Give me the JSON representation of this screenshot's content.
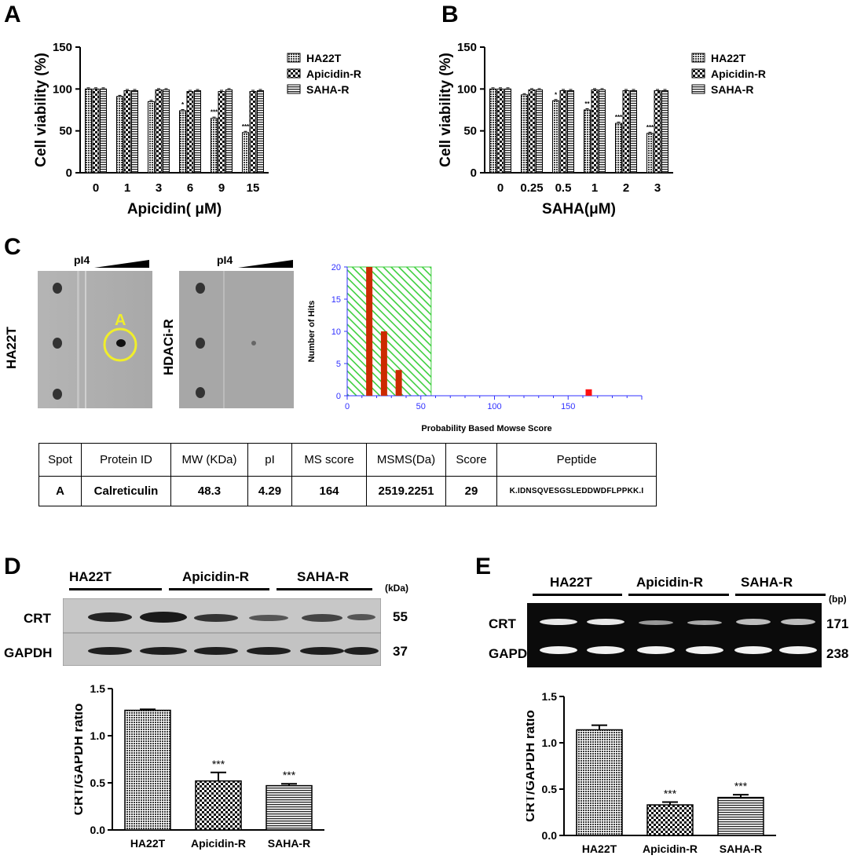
{
  "panels": {
    "A": "A",
    "B": "B",
    "C": "C",
    "D": "D",
    "E": "E"
  },
  "chart_data": [
    {
      "panel": "A",
      "type": "bar",
      "title": "",
      "xlabel": "Apicidin( μM)",
      "ylabel": "Cell viability (%)",
      "ylim": [
        0,
        150
      ],
      "yticks": [
        0,
        50,
        100,
        150
      ],
      "categories": [
        "0",
        "1",
        "3",
        "6",
        "9",
        "15"
      ],
      "series": [
        {
          "name": "HA22T",
          "pattern": "dense",
          "values": [
            100,
            91,
            85,
            74,
            65,
            48
          ]
        },
        {
          "name": "Apicidin-R",
          "pattern": "checker",
          "values": [
            100,
            98,
            99,
            97,
            97,
            97
          ]
        },
        {
          "name": "SAHA-R",
          "pattern": "hlines",
          "values": [
            100,
            98,
            99,
            98,
            99,
            98
          ]
        }
      ],
      "annotations": [
        {
          "category": "6",
          "series": "HA22T",
          "text": "*"
        },
        {
          "category": "9",
          "series": "HA22T",
          "text": "***"
        },
        {
          "category": "15",
          "series": "HA22T",
          "text": "***"
        }
      ],
      "legend": "right"
    },
    {
      "panel": "B",
      "type": "bar",
      "title": "",
      "xlabel": "SAHA(μM)",
      "ylabel": "Cell viability (%)",
      "ylim": [
        0,
        150
      ],
      "yticks": [
        0,
        50,
        100,
        150
      ],
      "categories": [
        "0",
        "0.25",
        "0.5",
        "1",
        "2",
        "3"
      ],
      "series": [
        {
          "name": "HA22T",
          "pattern": "dense",
          "values": [
            100,
            93,
            86,
            75,
            59,
            47
          ]
        },
        {
          "name": "Apicidin-R",
          "pattern": "checker",
          "values": [
            100,
            99,
            98,
            99,
            98,
            98
          ]
        },
        {
          "name": "SAHA-R",
          "pattern": "hlines",
          "values": [
            100,
            99,
            98,
            99,
            98,
            98
          ]
        }
      ],
      "annotations": [
        {
          "category": "0.5",
          "series": "HA22T",
          "text": "*"
        },
        {
          "category": "1",
          "series": "HA22T",
          "text": "**"
        },
        {
          "category": "2",
          "series": "HA22T",
          "text": "***"
        },
        {
          "category": "3",
          "series": "HA22T",
          "text": "***"
        }
      ],
      "legend": "right"
    },
    {
      "panel": "C",
      "type": "bar",
      "title": "",
      "xlabel": "Probability Based Mowse Score",
      "ylabel": "Number of Hits",
      "xlim": [
        0,
        200
      ],
      "ylim": [
        0,
        20
      ],
      "xticks": [
        0,
        50,
        100,
        150
      ],
      "yticks": [
        0,
        5,
        10,
        15,
        20
      ],
      "threshold_band": [
        0,
        57
      ],
      "bars": [
        {
          "x": 15,
          "value": 20
        },
        {
          "x": 25,
          "value": 10
        },
        {
          "x": 35,
          "value": 4
        },
        {
          "x": 164,
          "value": 1
        }
      ]
    },
    {
      "panel": "D",
      "type": "bar",
      "title": "",
      "xlabel": "",
      "ylabel": "CRT/GAPDH ratio",
      "ylim": [
        0,
        1.5
      ],
      "yticks": [
        "0.0",
        "0.5",
        "1.0",
        "1.5"
      ],
      "categories": [
        "HA22T",
        "Apicidin-R",
        "SAHA-R"
      ],
      "values": [
        1.27,
        0.52,
        0.47
      ],
      "errors": [
        0.01,
        0.09,
        0.02
      ],
      "patterns": [
        "dense",
        "checker",
        "hlines"
      ],
      "annotations": [
        "",
        "***",
        "***"
      ]
    },
    {
      "panel": "E",
      "type": "bar",
      "title": "",
      "xlabel": "",
      "ylabel": "CRT/GAPDH ratio",
      "ylim": [
        0,
        1.5
      ],
      "yticks": [
        "0.0",
        "0.5",
        "1.0",
        "1.5"
      ],
      "categories": [
        "HA22T",
        "Apicidin-R",
        "SAHA-R"
      ],
      "values": [
        1.14,
        0.33,
        0.41
      ],
      "errors": [
        0.05,
        0.03,
        0.03
      ],
      "patterns": [
        "dense",
        "checker",
        "hlines"
      ],
      "annotations": [
        "",
        "***",
        "***"
      ]
    }
  ],
  "gels": {
    "pi_label": "pI4",
    "left_label": "HA22T",
    "right_label": "HDACi-R",
    "spot_label": "A"
  },
  "table": {
    "headers": [
      "Spot",
      "Protein ID",
      "MW (KDa)",
      "pI",
      "MS score",
      "MSMS(Da)",
      "Score",
      "Peptide"
    ],
    "rows": [
      [
        "A",
        "Calreticulin",
        "48.3",
        "4.29",
        "164",
        "2519.2251",
        "29",
        "K.IDNSQVESGSLEDDWDFLPPKK.I"
      ]
    ]
  },
  "western": {
    "groups": [
      "HA22T",
      "Apicidin-R",
      "SAHA-R"
    ],
    "unit": "(kDa)",
    "rows": [
      {
        "name": "CRT",
        "size": "55"
      },
      {
        "name": "GAPDH",
        "size": "37"
      }
    ]
  },
  "pcr": {
    "groups": [
      "HA22T",
      "Apicidin-R",
      "SAHA-R"
    ],
    "unit": "(bp)",
    "rows": [
      {
        "name": "CRT",
        "size": "171"
      },
      {
        "name": "GAPDH",
        "size": "238"
      }
    ]
  }
}
